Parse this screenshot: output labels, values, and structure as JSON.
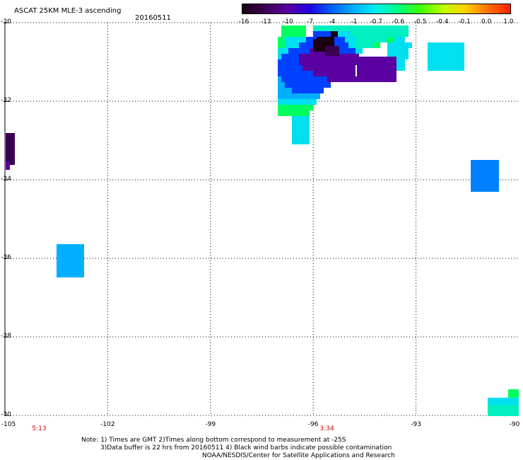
{
  "header": {
    "title": "ASCAT 25KM MLE-3 ascending",
    "date": "20160511"
  },
  "colorbar": {
    "labels": [
      "-16",
      "-13",
      "-10",
      "-7",
      "-4",
      "-1",
      "-0.7",
      "-0.6",
      "-0.5",
      "-0.4",
      "-0.1",
      "0.0",
      "1.0"
    ],
    "colors": [
      "#1a0010",
      "#3a0050",
      "#5a00a0",
      "#2000e0",
      "#0060ff",
      "#00b0ff",
      "#00f0f0",
      "#00ff80",
      "#40ff00",
      "#c0ff00",
      "#ffd000",
      "#ff7000",
      "#ff2000"
    ]
  },
  "axes": {
    "lat_labels": [
      "-20",
      "-22",
      "-24",
      "-26",
      "-28",
      "-30"
    ],
    "lon_labels": [
      "-105",
      "-102",
      "-99",
      "-96",
      "-93",
      "-90"
    ],
    "time_labels": [
      {
        "text": "5:13",
        "lon": -104.0
      },
      {
        "text": "3:34",
        "lon": -95.6
      }
    ]
  },
  "notes": {
    "line1": "Note: 1) Times are GMT 2)Times along bottom correspond to measurement at -25S",
    "line2": "3)Data buffer is 22 hrs from 20160511 4) Black wind barbs indicate possible contamination",
    "line3": "NOAA/NESDIS/Center for Satellite Applications and Research"
  }
}
